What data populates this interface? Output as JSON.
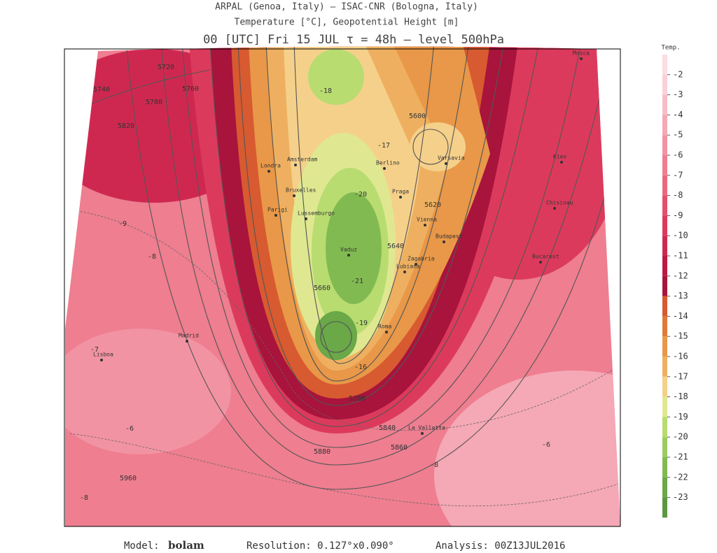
{
  "header": {
    "line1": "ARPAL (Genoa, Italy)  —  ISAC-CNR (Bologna, Italy)",
    "line2": "Temperature [°C], Geopotential Height [m]",
    "line3": "00 [UTC] Fri 15 JUL   τ = 48h   —   level 500hPa"
  },
  "legend": {
    "title": "Temp.",
    "labels": [
      "-2",
      "-3",
      "-4",
      "-5",
      "-6",
      "-7",
      "-8",
      "-9",
      "-10",
      "-11",
      "-12",
      "-13",
      "-14",
      "-15",
      "-16",
      "-17",
      "-18",
      "-19",
      "-20",
      "-21",
      "-22",
      "-23"
    ],
    "colors": [
      "#fbdde2",
      "#fad0d7",
      "#f8bcc6",
      "#f5a8b5",
      "#f293a3",
      "#ee7e90",
      "#ea6880",
      "#e4506c",
      "#dc3a5c",
      "#cf2850",
      "#bc1a44",
      "#a8143c",
      "#d85a30",
      "#e07a38",
      "#e89848",
      "#eeb060",
      "#f5d08a",
      "#dfe890",
      "#b8dc70",
      "#9ccc60",
      "#82ba52",
      "#6aa848",
      "#5a9840"
    ]
  },
  "map": {
    "cities": [
      "Madrid",
      "Lisboa",
      "Londra",
      "Parigi",
      "Bruxelles",
      "Amsterdam",
      "Lussemburgo",
      "Berlino",
      "Praga",
      "Varsavia",
      "Vienna",
      "Budapest",
      "Zagabria",
      "Lubiana",
      "Bucarest",
      "Roma",
      "La Valletta",
      "Vaduz",
      "Kiev",
      "Chisinau",
      "Mosca"
    ],
    "contour_labels": [
      "5720",
      "5740",
      "5760",
      "5780",
      "5820",
      "5600",
      "5620",
      "5640",
      "5660",
      "5280",
      "5840",
      "5860",
      "5880",
      "5960"
    ],
    "temperature_labels": [
      "-18",
      "-20",
      "-21",
      "-19",
      "-16",
      "-8",
      "-7",
      "-6",
      "-8",
      "-8",
      "-6",
      "-9",
      "-17"
    ]
  },
  "footer": {
    "model_label": "Model:",
    "model": "bolam",
    "resolution": "Resolution: 0.127°x0.090°",
    "analysis": "Analysis: 00Z13JUL2016"
  }
}
